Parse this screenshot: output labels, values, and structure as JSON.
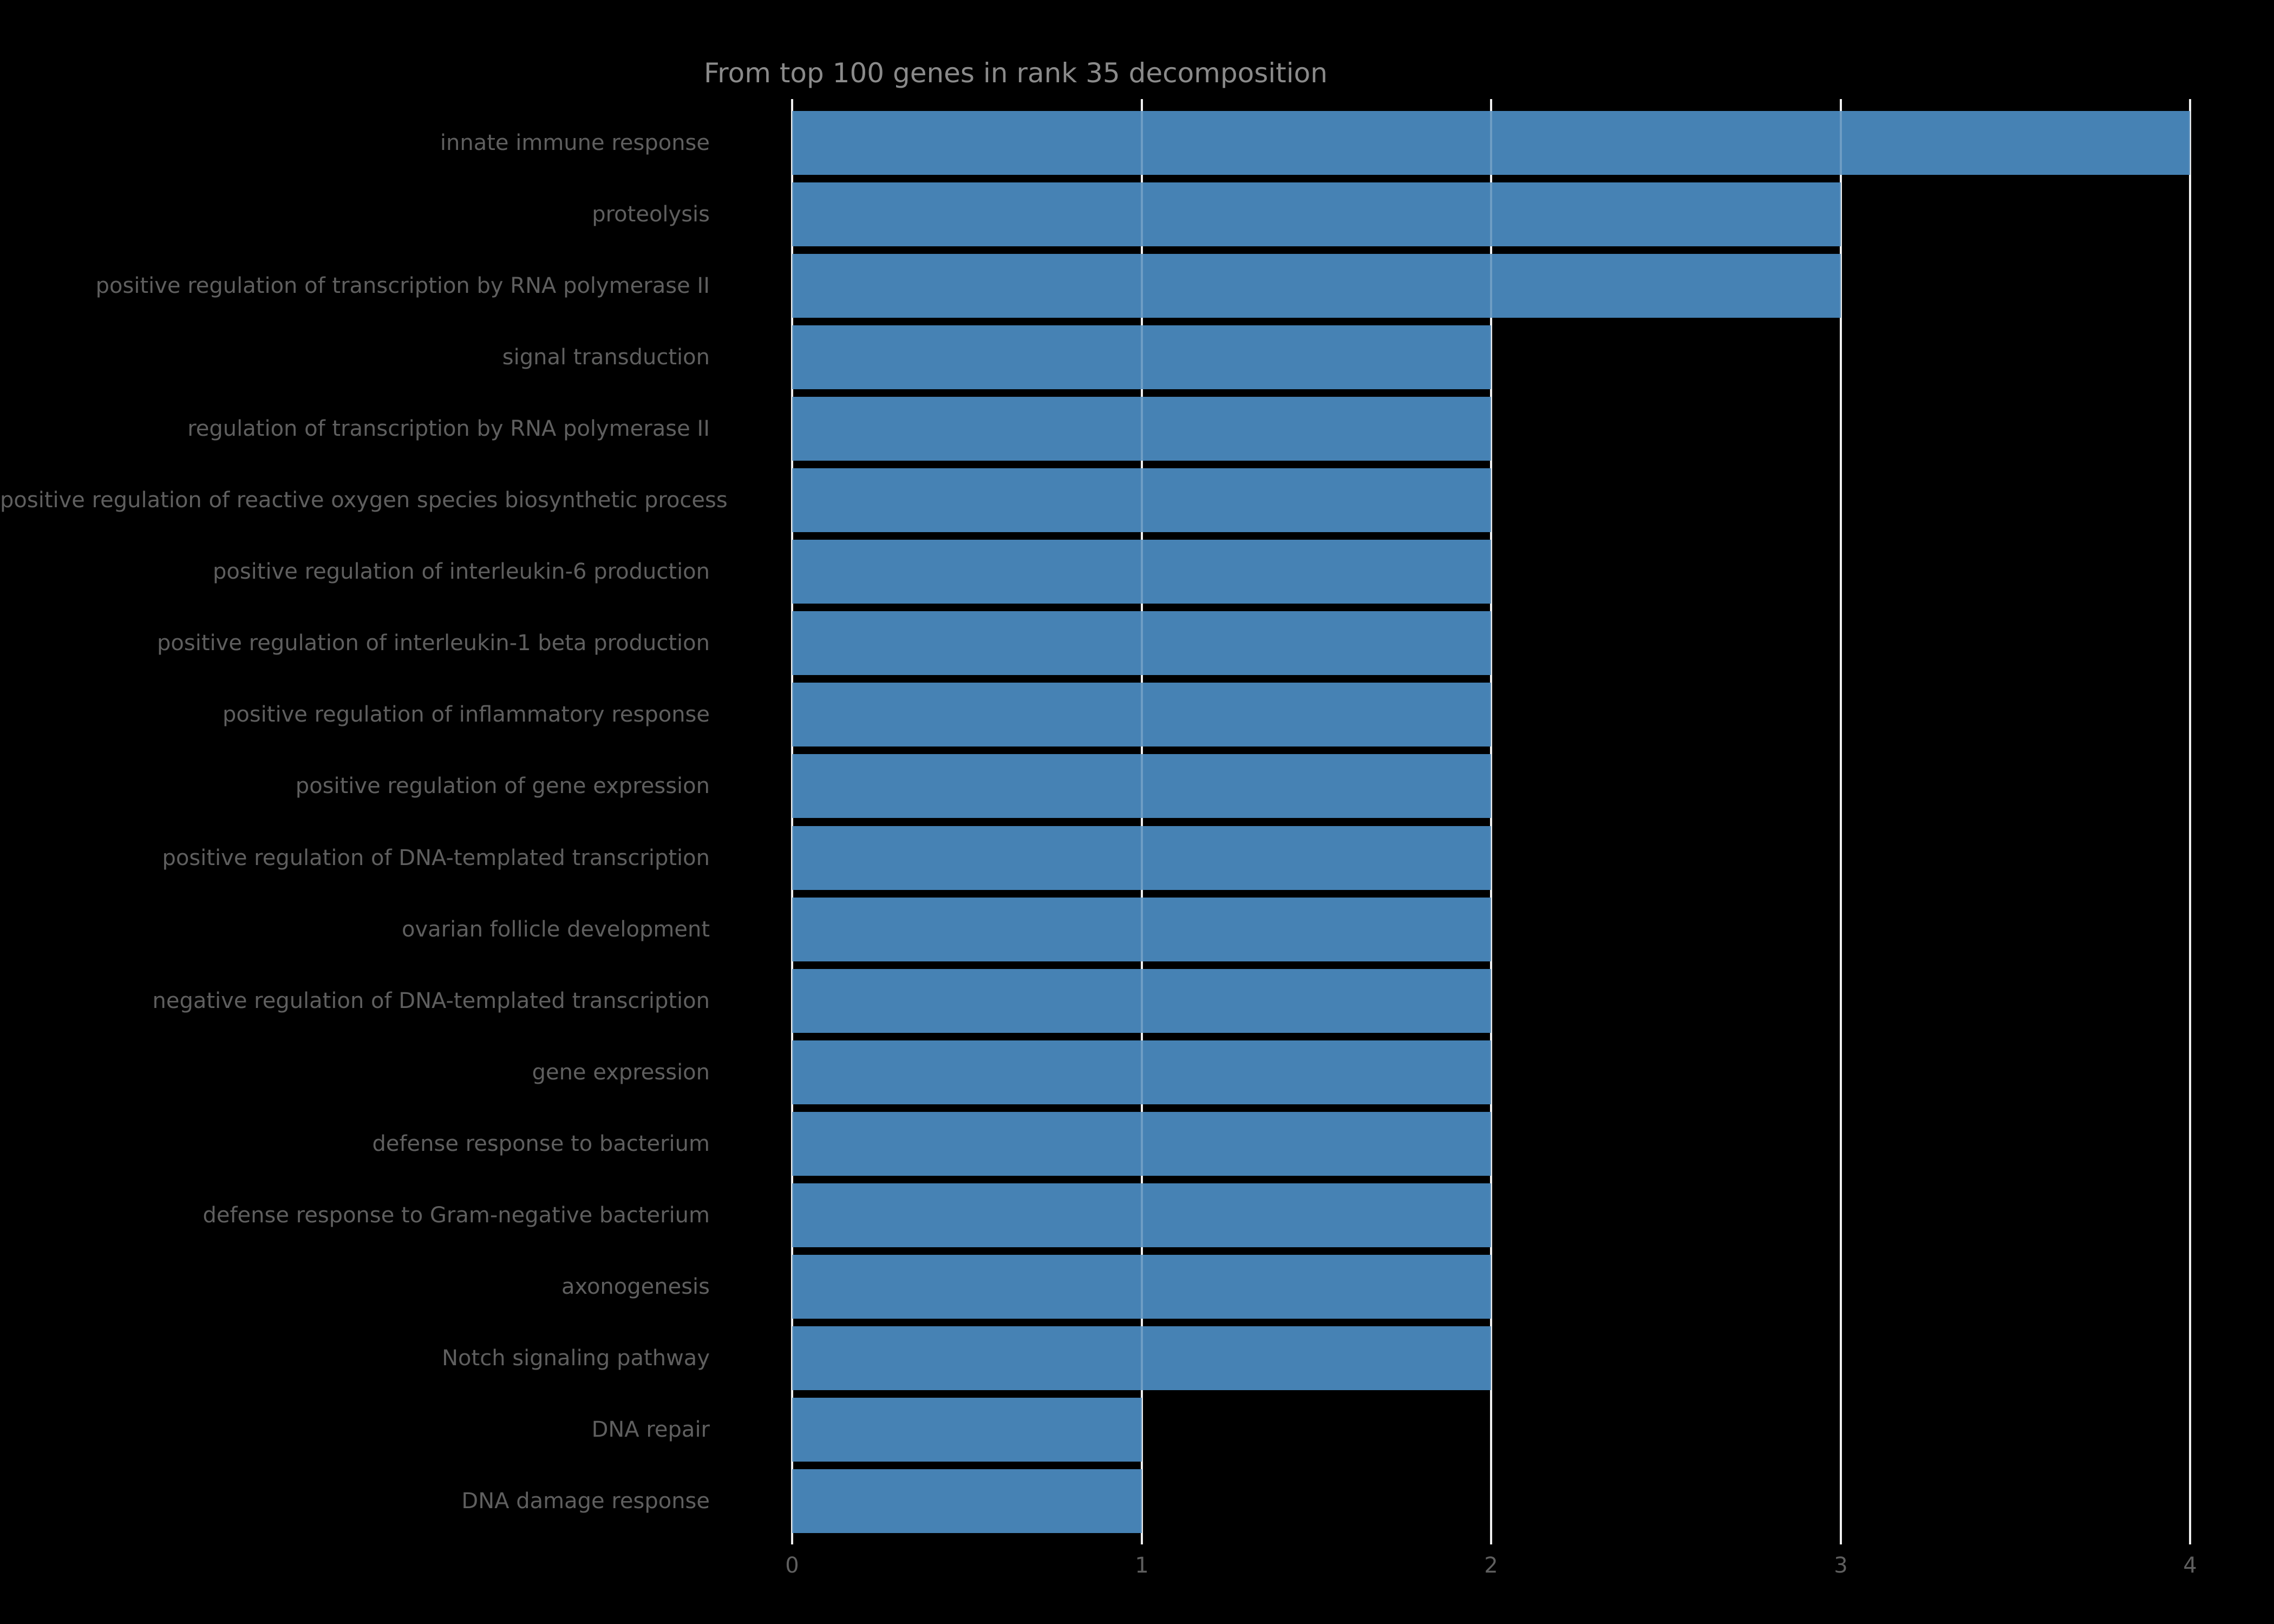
{
  "title": "From top 100 genes in rank 35 decomposition",
  "chart_data": {
    "type": "bar",
    "orientation": "horizontal",
    "title": "From top 100 genes in rank 35 decomposition",
    "categories": [
      "innate immune response",
      "proteolysis",
      "positive regulation of transcription by RNA polymerase II",
      "signal transduction",
      "regulation of transcription by RNA polymerase II",
      "positive regulation of reactive oxygen species biosynthetic process",
      "positive regulation of interleukin-6 production",
      "positive regulation of interleukin-1 beta production",
      "positive regulation of inflammatory response",
      "positive regulation of gene expression",
      "positive regulation of DNA-templated transcription",
      "ovarian follicle development",
      "negative regulation of DNA-templated transcription",
      "gene expression",
      "defense response to bacterium",
      "defense response to Gram-negative bacterium",
      "axonogenesis",
      "Notch signaling pathway",
      "DNA repair",
      "DNA damage response"
    ],
    "values": [
      4,
      3,
      3,
      2,
      2,
      2,
      2,
      2,
      2,
      2,
      2,
      2,
      2,
      2,
      2,
      2,
      2,
      2,
      1,
      1
    ],
    "xlabel": "",
    "ylabel": "",
    "xlim": [
      0,
      4
    ],
    "x_ticks": [
      "0",
      "1",
      "2",
      "3",
      "4"
    ],
    "grid": true,
    "legend": false,
    "colors": {
      "background": "#000000",
      "bar": "#4682b4",
      "gridline": "#e9e9e9",
      "tick_label": "#5f5f5f",
      "category_label": "#5f5f5f",
      "title": "#8a8a8a"
    }
  }
}
